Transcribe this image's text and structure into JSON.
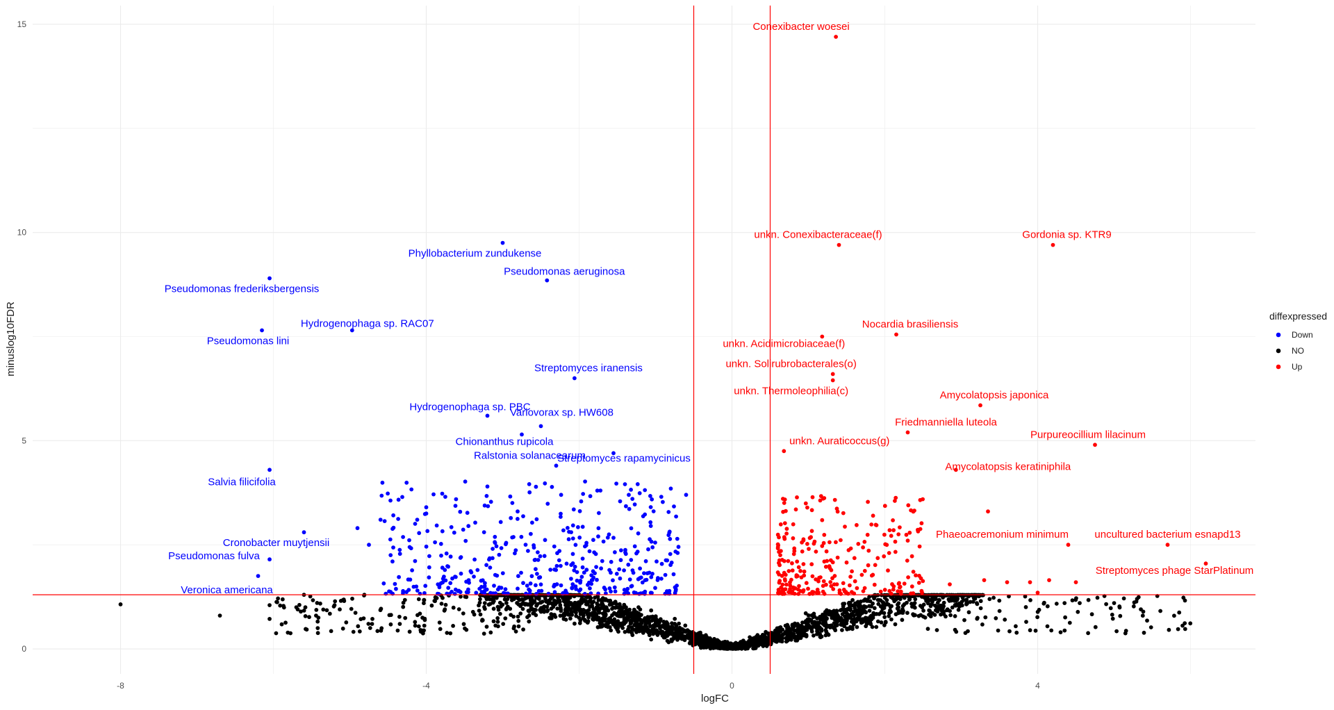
{
  "chart_data": {
    "type": "scatter",
    "xlabel": "logFC",
    "ylabel": "minuslog10FDR",
    "xlim": [
      -9.15,
      6.85
    ],
    "ylim": [
      -0.6,
      15.45
    ],
    "x_ticks": [
      -8,
      -4,
      0,
      4
    ],
    "x_tick_labels": [
      "-8",
      "-4",
      "0",
      "4"
    ],
    "y_ticks": [
      0,
      5,
      10,
      15
    ],
    "y_tick_labels": [
      "0",
      "5",
      "10",
      "15"
    ],
    "grid": true,
    "thresholds": {
      "logFC": [
        -0.5,
        0.5
      ],
      "minuslog10FDR": 1.3,
      "color": "#ff0000"
    },
    "legend": {
      "title": "diffexpressed",
      "position": "right",
      "items": [
        {
          "label": "Down",
          "color": "#0000ff"
        },
        {
          "label": "NO",
          "color": "#000000"
        },
        {
          "label": "Up",
          "color": "#ff0000"
        }
      ]
    },
    "colors": {
      "Down": "#0000ff",
      "NO": "#000000",
      "Up": "#ff0000"
    },
    "labeled_points": [
      {
        "x": 1.36,
        "y": 14.7,
        "group": "Up",
        "label": "Conexibacter woesei"
      },
      {
        "x": 1.4,
        "y": 9.7,
        "group": "Up",
        "label": "unkn. Conexibacteraceae(f)"
      },
      {
        "x": 4.2,
        "y": 9.7,
        "group": "Up",
        "label": "Gordonia sp. KTR9"
      },
      {
        "x": 2.15,
        "y": 7.55,
        "group": "Up",
        "label": "Nocardia brasiliensis"
      },
      {
        "x": 1.18,
        "y": 7.5,
        "group": "Up",
        "label": "unkn. Acidimicrobiaceae(f)"
      },
      {
        "x": 1.32,
        "y": 6.6,
        "group": "Up",
        "label": "unkn. Solirubrobacterales(o)"
      },
      {
        "x": 1.32,
        "y": 6.45,
        "group": "Up",
        "label": "unkn. Thermoleophilia(c)"
      },
      {
        "x": 3.25,
        "y": 5.85,
        "group": "Up",
        "label": "Amycolatopsis japonica"
      },
      {
        "x": 2.3,
        "y": 5.2,
        "group": "Up",
        "label": "Friedmanniella luteola"
      },
      {
        "x": 4.75,
        "y": 4.9,
        "group": "Up",
        "label": "Purpureocillium lilacinum"
      },
      {
        "x": 0.68,
        "y": 4.75,
        "group": "Up",
        "label": "unkn. Auraticoccus(g)"
      },
      {
        "x": 2.93,
        "y": 4.3,
        "group": "Up",
        "label": "Amycolatopsis keratiniphila"
      },
      {
        "x": 4.4,
        "y": 2.5,
        "group": "Up",
        "label": "Phaeoacremonium minimum"
      },
      {
        "x": 5.7,
        "y": 2.5,
        "group": "Up",
        "label": "uncultured bacterium esnapd13"
      },
      {
        "x": 6.2,
        "y": 2.05,
        "group": "Up",
        "label": "Streptomyces phage StarPlatinum"
      },
      {
        "x": -3,
        "y": 9.75,
        "group": "Down",
        "label": "Phyllobacterium zundukense"
      },
      {
        "x": -2.42,
        "y": 8.85,
        "group": "Down",
        "label": "Pseudomonas aeruginosa"
      },
      {
        "x": -6.05,
        "y": 8.9,
        "group": "Down",
        "label": "Pseudomonas frederiksbergensis"
      },
      {
        "x": -4.97,
        "y": 7.65,
        "group": "Down",
        "label": "Hydrogenophaga sp. RAC07"
      },
      {
        "x": -6.15,
        "y": 7.65,
        "group": "Down",
        "label": "Pseudomonas lini"
      },
      {
        "x": -2.06,
        "y": 6.5,
        "group": "Down",
        "label": "Streptomyces iranensis"
      },
      {
        "x": -3.2,
        "y": 5.6,
        "group": "Down",
        "label": "Hydrogenophaga sp. PBC"
      },
      {
        "x": -2.5,
        "y": 5.35,
        "group": "Down",
        "label": "Variovorax sp. HW608"
      },
      {
        "x": -2.75,
        "y": 5.15,
        "group": "Down",
        "label": "Chionanthus rupicola"
      },
      {
        "x": -2.3,
        "y": 4.4,
        "group": "Down",
        "label": "Ralstonia solanacearum"
      },
      {
        "x": -1.55,
        "y": 4.7,
        "group": "Down",
        "label": "Streptomyces rapamycinicus"
      },
      {
        "x": -6.05,
        "y": 4.3,
        "group": "Down",
        "label": "Salvia filicifolia"
      },
      {
        "x": -5.6,
        "y": 2.8,
        "group": "Down",
        "label": "Cronobacter muytjensii"
      },
      {
        "x": -6.05,
        "y": 2.15,
        "group": "Down",
        "label": "Pseudomonas fulva"
      },
      {
        "x": -6.2,
        "y": 1.75,
        "group": "Down",
        "label": "Veronica americana"
      }
    ]
  }
}
